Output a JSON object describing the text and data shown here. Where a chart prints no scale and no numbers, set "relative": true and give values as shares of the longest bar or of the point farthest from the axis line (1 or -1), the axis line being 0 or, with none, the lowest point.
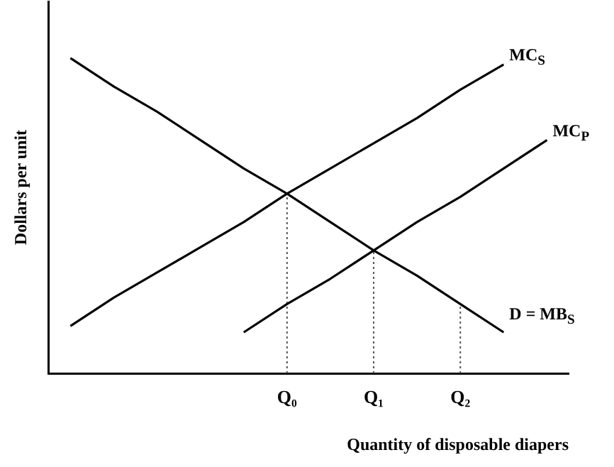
{
  "chart_data": {
    "type": "line",
    "relative": true,
    "xlabel": "Quantity of disposable diapers",
    "ylabel": "Dollars per unit",
    "categories": [
      null,
      null,
      null,
      null,
      null,
      "Q₀",
      null,
      "Q₁",
      null,
      "Q₂",
      null,
      null
    ],
    "series": [
      {
        "name": "MC$_{S}$",
        "color": "#000000",
        "values": [
          0.15,
          0.24,
          0.32,
          0.4,
          0.48,
          0.57,
          0.65,
          0.73,
          0.81,
          0.9,
          0.98,
          null
        ]
      },
      {
        "name": "MC$_{P}$",
        "color": "#000000",
        "values": [
          null,
          null,
          null,
          null,
          0.13,
          0.22,
          0.3,
          0.39,
          0.48,
          0.56,
          0.65,
          0.74
        ]
      },
      {
        "name": "D = MB$_{S}$",
        "color": "#000000",
        "values": [
          1,
          0.91,
          0.83,
          0.74,
          0.65,
          0.57,
          0.48,
          0.39,
          0.31,
          0.22,
          0.13,
          null
        ]
      }
    ],
    "ref_lines": [
      {
        "axis": "x",
        "value": "Q₀",
        "color": "#555555",
        "line_style": "dotted"
      },
      {
        "axis": "x",
        "value": "Q₁",
        "color": "#555555",
        "line_style": "dotted"
      },
      {
        "axis": "x",
        "value": "Q₂",
        "color": "#555555",
        "line_style": "dotted"
      }
    ],
    "grid": false,
    "legend": false,
    "marker": "none",
    "line_style": "solid"
  }
}
